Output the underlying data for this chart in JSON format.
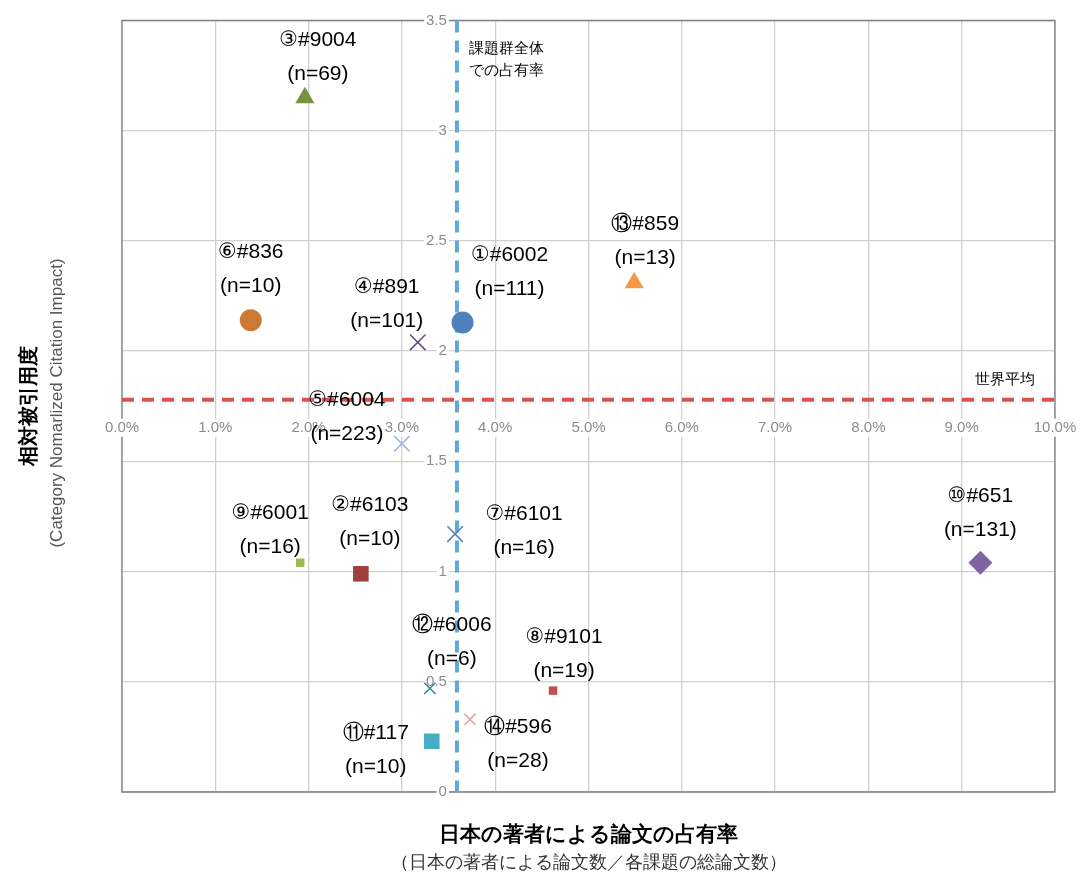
{
  "chart_data": {
    "type": "scatter",
    "xlabel": "日本の著者による論文の占有率",
    "ylabel": "相対被引用度",
    "xlim": [
      0,
      10
    ],
    "ylim": [
      0,
      3.5
    ],
    "xticks": [
      {
        "value": 0,
        "label": "0.0%"
      },
      {
        "value": 1,
        "label": "1.0%"
      },
      {
        "value": 2,
        "label": "2.0%"
      },
      {
        "value": 3,
        "label": "3.0%"
      },
      {
        "value": 4,
        "label": "4.0%"
      },
      {
        "value": 5,
        "label": "5.0%"
      },
      {
        "value": 6,
        "label": "6.0%"
      },
      {
        "value": 7,
        "label": "7.0%"
      },
      {
        "value": 8,
        "label": "8.0%"
      },
      {
        "value": 9,
        "label": "9.0%"
      },
      {
        "value": 10,
        "label": "10.0%"
      }
    ],
    "yticks": [
      0,
      0.5,
      1,
      1.5,
      2,
      2.5,
      3,
      3.5
    ],
    "grid": true,
    "series": [
      {
        "type": "scatter",
        "name": "①#6002\n(n=111)",
        "color": "#4f81bd",
        "marker": "circle",
        "x": [
          3.65
        ],
        "values": [
          2.13
        ]
      },
      {
        "type": "scatter",
        "name": "②#6103\n(n=10)",
        "color": "#9e413e",
        "marker": "square",
        "x": [
          2.56
        ],
        "values": [
          0.99
        ]
      },
      {
        "type": "scatter",
        "name": "③#9004\n(n=69)",
        "color": "#77933c",
        "marker": "triangle",
        "x": [
          1.96
        ],
        "values": [
          3.15
        ]
      },
      {
        "type": "scatter",
        "name": "④#891\n(n=101)",
        "color": "#604a7b",
        "marker": "cross",
        "x": [
          3.17
        ],
        "values": [
          2.04
        ]
      },
      {
        "type": "scatter",
        "name": "⑤#6004\n(n=223)",
        "color": "#95b3d7",
        "marker": "cross",
        "x": [
          3.0
        ],
        "values": [
          1.58
        ]
      },
      {
        "type": "scatter",
        "name": "⑥#836\n(n=10)",
        "color": "#cc7a33",
        "marker": "circle",
        "x": [
          1.38
        ],
        "values": [
          2.14
        ]
      },
      {
        "type": "scatter",
        "name": "⑦#6101\n(n=16)",
        "color": "#4f81bd",
        "marker": "cross",
        "x": [
          3.57
        ],
        "values": [
          1.17
        ]
      },
      {
        "type": "scatter",
        "name": "⑧#9101\n(n=19)",
        "color": "#c0504d",
        "marker": "square",
        "x": [
          4.62
        ],
        "values": [
          0.46
        ]
      },
      {
        "type": "scatter",
        "name": "⑨#6001\n(n=16)",
        "color": "#9bbb59",
        "marker": "square",
        "x": [
          1.91
        ],
        "values": [
          1.04
        ]
      },
      {
        "type": "scatter",
        "name": "⑩#651\n(n=131)",
        "color": "#8064a2",
        "marker": "diamond",
        "x": [
          9.2
        ],
        "values": [
          1.04
        ]
      },
      {
        "type": "scatter",
        "name": "⑪#117\n(n=10)",
        "color": "#4bacc6",
        "marker": "square",
        "x": [
          3.32
        ],
        "values": [
          0.23
        ]
      },
      {
        "type": "scatter",
        "name": "⑫#6006\n(n=6)",
        "color": "#31859c",
        "marker": "cross",
        "x": [
          3.3
        ],
        "values": [
          0.47
        ]
      },
      {
        "type": "scatter",
        "name": "⑬#859\n(n=13)",
        "color": "#f79646",
        "marker": "triangle",
        "x": [
          5.49
        ],
        "values": [
          2.31
        ]
      },
      {
        "type": "scatter",
        "name": "⑭#596\n(n=28)",
        "color": "#e6a0a0",
        "marker": "cross",
        "x": [
          3.73
        ],
        "values": [
          0.33
        ]
      }
    ],
    "ref_lines": [
      {
        "axis": "x",
        "value": 3.59,
        "label": "課題群全体での占有率",
        "color": "#5fa8dc",
        "line_style": "dashed"
      },
      {
        "axis": "y",
        "value": 1.78,
        "label": "世界平均",
        "color": "#d9534f",
        "line_style": "dashed"
      }
    ],
    "annotations": [
      "（日本の著者による論文数／各課題の総論文数）",
      "(Category Nomarlized Citation Impact)"
    ]
  }
}
